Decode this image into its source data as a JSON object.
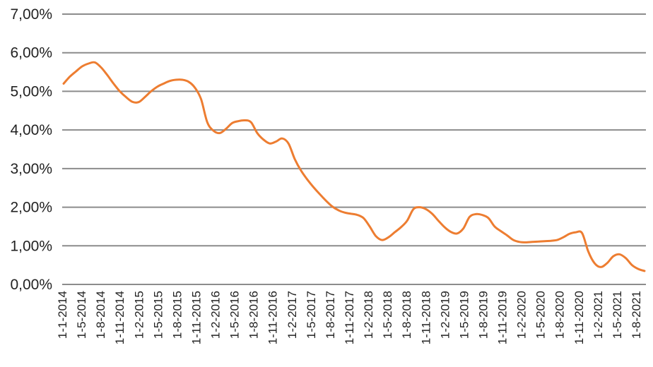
{
  "chart_data": {
    "type": "line",
    "title": "",
    "xlabel": "",
    "ylabel": "",
    "ylim": [
      0,
      7
    ],
    "grid": true,
    "legend": "none",
    "line_color": "#ED7D31",
    "grid_color": "#8C8C8C",
    "y_tick_labels": [
      "0,00%",
      "1,00%",
      "2,00%",
      "3,00%",
      "4,00%",
      "5,00%",
      "6,00%",
      "7,00%"
    ],
    "x_tick_labels": [
      "1-1-2014",
      "1-5-2014",
      "1-8-2014",
      "1-11-2014",
      "1-2-2015",
      "1-5-2015",
      "1-8-2015",
      "1-11-2015",
      "1-2-2016",
      "1-5-2016",
      "1-8-2016",
      "1-11-2016",
      "1-2-2017",
      "1-5-2017",
      "1-8-2017",
      "1-11-2017",
      "1-2-2018",
      "1-5-2018",
      "1-8-2018",
      "1-11-2018",
      "1-2-2019",
      "1-5-2019",
      "1-8-2019",
      "1-11-2019",
      "1-2-2020",
      "1-5-2020",
      "1-8-2020",
      "1-11-2020",
      "1-2-2021",
      "1-5-2021",
      "1-8-2021"
    ],
    "series": [
      {
        "x": [
          "1-1-2014",
          "1-2-2014",
          "1-3-2014",
          "1-4-2014",
          "1-5-2014",
          "1-6-2014",
          "1-7-2014",
          "1-8-2014",
          "1-9-2014",
          "1-10-2014",
          "1-11-2014",
          "1-12-2014",
          "1-1-2015",
          "1-2-2015",
          "1-3-2015",
          "1-4-2015",
          "1-5-2015",
          "1-6-2015",
          "1-7-2015",
          "1-8-2015",
          "1-9-2015",
          "1-10-2015",
          "1-11-2015",
          "1-12-2015",
          "1-1-2016",
          "1-2-2016",
          "1-3-2016",
          "1-4-2016",
          "1-5-2016",
          "1-6-2016",
          "1-7-2016",
          "1-8-2016",
          "1-9-2016",
          "1-10-2016",
          "1-11-2016",
          "1-12-2016",
          "1-1-2017",
          "1-2-2017",
          "1-3-2017",
          "1-4-2017",
          "1-5-2017",
          "1-6-2017",
          "1-7-2017",
          "1-8-2017",
          "1-9-2017",
          "1-10-2017",
          "1-11-2017",
          "1-12-2017",
          "1-1-2018",
          "1-2-2018",
          "1-3-2018",
          "1-4-2018",
          "1-5-2018",
          "1-6-2018",
          "1-7-2018",
          "1-8-2018",
          "1-9-2018",
          "1-10-2018",
          "1-11-2018",
          "1-12-2018",
          "1-1-2019",
          "1-2-2019",
          "1-3-2019",
          "1-4-2019",
          "1-5-2019",
          "1-6-2019",
          "1-7-2019",
          "1-8-2019",
          "1-9-2019",
          "1-10-2019",
          "1-11-2019",
          "1-12-2019",
          "1-1-2020",
          "1-2-2020",
          "1-3-2020",
          "1-4-2020",
          "1-5-2020",
          "1-6-2020",
          "1-7-2020",
          "1-8-2020",
          "1-9-2020",
          "1-10-2020",
          "1-11-2020",
          "1-12-2020",
          "1-1-2021",
          "1-2-2021",
          "1-3-2021",
          "1-4-2021",
          "1-5-2021",
          "1-6-2021",
          "1-7-2021",
          "1-8-2021",
          "1-9-2021",
          "1-10-2021"
        ],
        "values": [
          5.2,
          5.38,
          5.52,
          5.65,
          5.72,
          5.75,
          5.62,
          5.42,
          5.2,
          5.0,
          4.85,
          4.73,
          4.72,
          4.85,
          5.0,
          5.12,
          5.2,
          5.27,
          5.3,
          5.3,
          5.25,
          5.1,
          4.8,
          4.2,
          3.98,
          3.92,
          4.03,
          4.18,
          4.23,
          4.25,
          4.2,
          3.92,
          3.75,
          3.65,
          3.7,
          3.78,
          3.65,
          3.25,
          2.95,
          2.72,
          2.52,
          2.34,
          2.17,
          2.02,
          1.92,
          1.86,
          1.83,
          1.8,
          1.72,
          1.5,
          1.25,
          1.15,
          1.22,
          1.35,
          1.48,
          1.65,
          1.95,
          2.0,
          1.95,
          1.83,
          1.65,
          1.48,
          1.36,
          1.32,
          1.45,
          1.75,
          1.82,
          1.8,
          1.72,
          1.5,
          1.38,
          1.27,
          1.15,
          1.1,
          1.09,
          1.1,
          1.11,
          1.12,
          1.13,
          1.15,
          1.22,
          1.31,
          1.35,
          1.33,
          0.85,
          0.55,
          0.45,
          0.55,
          0.73,
          0.78,
          0.68,
          0.5,
          0.4,
          0.35
        ]
      }
    ]
  }
}
